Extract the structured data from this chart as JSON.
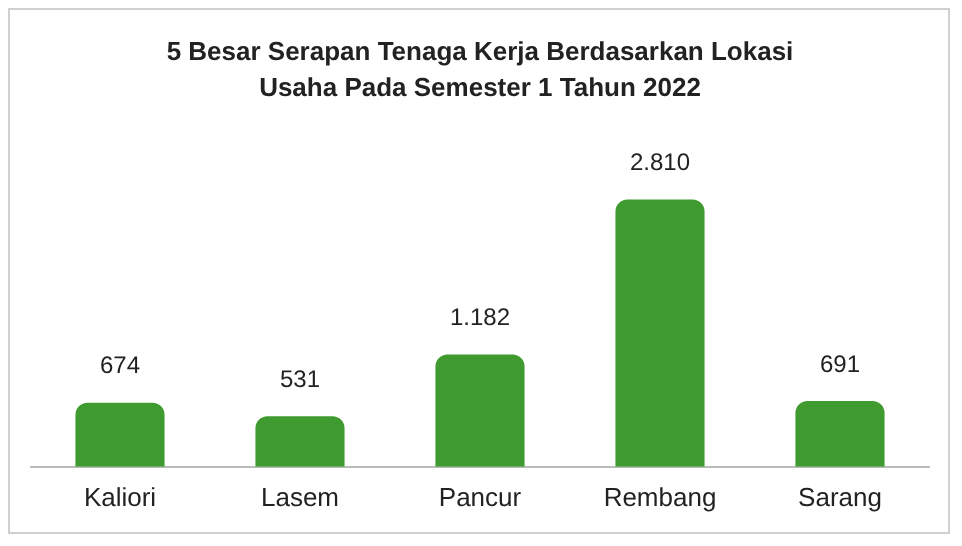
{
  "chart_data": {
    "type": "bar",
    "title": "5 Besar Serapan Tenaga Kerja Berdasarkan Lokasi Usaha Pada Semester 1 Tahun 2022",
    "categories": [
      "Kaliori",
      "Lasem",
      "Pancur",
      "Rembang",
      "Sarang"
    ],
    "values": [
      674,
      531,
      1182,
      2810,
      691
    ],
    "value_labels": [
      "674",
      "531",
      "1.182",
      "2.810",
      "691"
    ],
    "color": "#3f9a2f",
    "grid": false,
    "legend": false
  }
}
